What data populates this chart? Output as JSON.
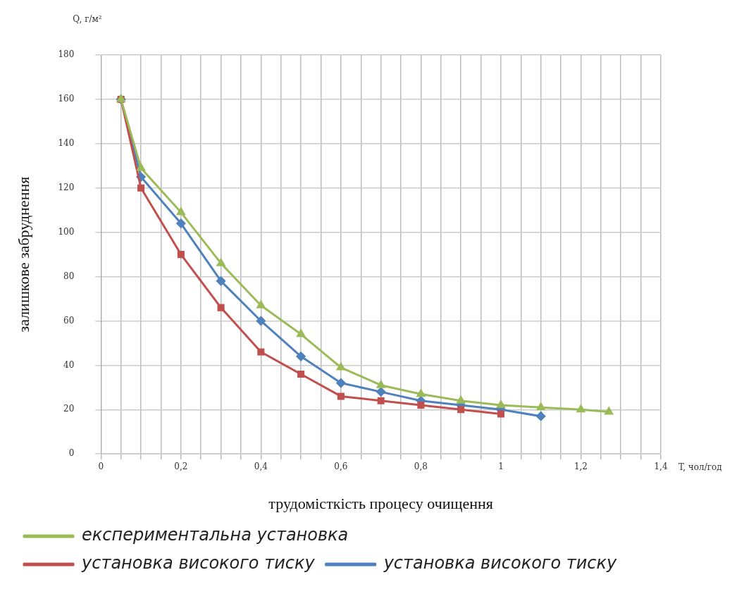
{
  "chart_data": {
    "type": "line",
    "xlabel": "трудомісткість процесу очищення",
    "ylabel": "залишкове забруднення",
    "annotations": [
      "Q, г/м²",
      "T, чол/год"
    ],
    "xlim": [
      0,
      1.4
    ],
    "xticks": [
      0,
      {
        "value": 0.05,
        "label": null
      },
      {
        "value": 0.1,
        "label": null
      },
      {
        "value": 0.15,
        "label": null
      },
      {
        "value": 0.2,
        "label": "0,2"
      },
      {
        "value": 0.25,
        "label": null
      },
      {
        "value": 0.3,
        "label": null
      },
      {
        "value": 0.35,
        "label": null
      },
      {
        "value": 0.4,
        "label": "0,4"
      },
      {
        "value": 0.45,
        "label": null
      },
      {
        "value": 0.5,
        "label": null
      },
      {
        "value": 0.55,
        "label": null
      },
      {
        "value": 0.6,
        "label": "0,6"
      },
      {
        "value": 0.65,
        "label": null
      },
      {
        "value": 0.7,
        "label": null
      },
      {
        "value": 0.75,
        "label": null
      },
      {
        "value": 0.8,
        "label": "0,8"
      },
      {
        "value": 0.85,
        "label": null
      },
      {
        "value": 0.9,
        "label": null
      },
      {
        "value": 0.95,
        "label": null
      },
      1,
      {
        "value": 1.05,
        "label": null
      },
      {
        "value": 1.1,
        "label": null
      },
      {
        "value": 1.15,
        "label": null
      },
      {
        "value": 1.2,
        "label": "1,2"
      },
      {
        "value": 1.25,
        "label": null
      },
      {
        "value": 1.3,
        "label": null
      },
      {
        "value": 1.35,
        "label": null
      },
      {
        "value": 1.4,
        "label": "1,4"
      }
    ],
    "ylim": [
      0,
      180
    ],
    "yticks": [
      0,
      20,
      40,
      60,
      80,
      100,
      120,
      140,
      160,
      180
    ],
    "grid": true,
    "legend": "bottom left",
    "line_style": "solid",
    "series": [
      {
        "name": "експериментальна установка",
        "color": "#9bbb59",
        "marker": "triangle",
        "x": [
          0.05,
          0.1,
          0.2,
          0.3,
          0.4,
          0.5,
          0.6,
          0.7,
          0.8,
          0.9,
          1.0,
          1.1,
          1.2,
          1.27
        ],
        "values": [
          160,
          129,
          109,
          86,
          67,
          54,
          39,
          31,
          27,
          24,
          22,
          21,
          20,
          19
        ]
      },
      {
        "name": "установка високого тиску",
        "color": "#c0504d",
        "marker": "square",
        "x": [
          0.05,
          0.1,
          0.2,
          0.3,
          0.4,
          0.5,
          0.6,
          0.7,
          0.8,
          0.9,
          1.0
        ],
        "values": [
          160,
          120,
          90,
          66,
          46,
          36,
          26,
          24,
          22,
          20,
          18
        ]
      },
      {
        "name": "установка високого тиску",
        "color": "#4f81bd",
        "marker": "diamond",
        "x": [
          0.05,
          0.1,
          0.2,
          0.3,
          0.4,
          0.5,
          0.6,
          0.7,
          0.8,
          0.9,
          1.0,
          1.1
        ],
        "values": [
          160,
          125,
          104,
          78,
          60,
          44,
          32,
          28,
          24,
          22,
          20,
          17
        ]
      }
    ]
  }
}
